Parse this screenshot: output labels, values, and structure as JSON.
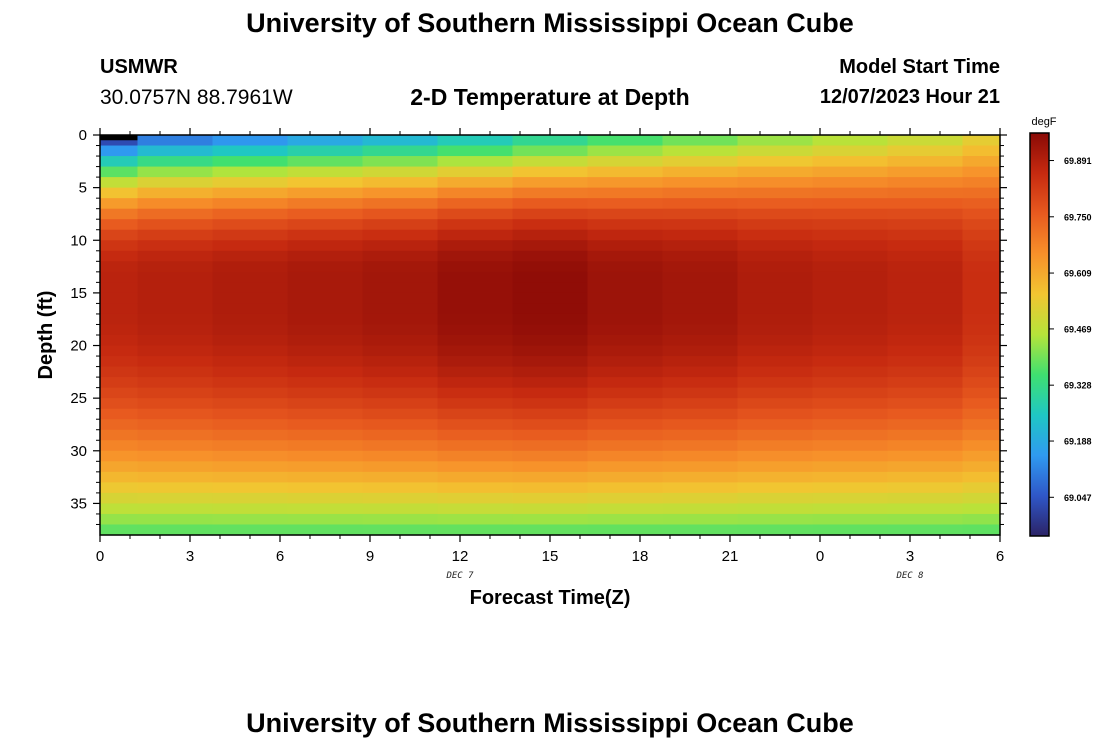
{
  "header": {
    "title": "University of Southern Mississippi Ocean Cube",
    "station": "USMWR",
    "coordinates": "30.0757N  88.7961W",
    "subtitle": "2-D Temperature at Depth",
    "model_start_label": "Model Start Time",
    "model_start_value": "12/07/2023 Hour 21"
  },
  "footer": {
    "title": "University of Southern Mississippi Ocean Cube"
  },
  "chart_data": {
    "type": "heatmap",
    "title": "2-D Temperature at Depth",
    "xlabel": "Forecast Time(Z)",
    "ylabel": "Depth (ft)",
    "x_ticks": [
      "0",
      "3",
      "6",
      "9",
      "12",
      "15",
      "18",
      "21",
      "0",
      "3",
      "6"
    ],
    "day_labels": [
      {
        "text": "DEC 7",
        "at_tick": 4
      },
      {
        "text": "DEC 8",
        "at_tick": 9
      }
    ],
    "y_ticks": [
      "0",
      "5",
      "10",
      "15",
      "20",
      "25",
      "30",
      "35"
    ],
    "ylim": [
      38,
      0
    ],
    "colorbar": {
      "unit": "degF",
      "min": 68.95,
      "max": 69.96,
      "labels": [
        "69.891",
        "69.750",
        "69.609",
        "69.469",
        "69.328",
        "69.188",
        "69.047"
      ],
      "colors": [
        "#2b2366",
        "#2f57c8",
        "#2f9af0",
        "#1fc7c4",
        "#3fe070",
        "#b6e43a",
        "#f2c531",
        "#f7902a",
        "#e85a1f",
        "#c62a10",
        "#8a0a06"
      ]
    },
    "time_columns": [
      "0",
      "1.25",
      "3.75",
      "6.25",
      "8.75",
      "11.25",
      "13.75",
      "16.25",
      "18.75",
      "21.25",
      "23.75",
      "26.25",
      "28.75",
      "30"
    ],
    "surface_temp_by_column": [
      68.97,
      69.06,
      69.1,
      69.14,
      69.18,
      69.23,
      69.28,
      69.33,
      69.37,
      69.41,
      69.44,
      69.47,
      69.52
    ],
    "top_warming_depth_ft": [
      1.6,
      2.2,
      2.7,
      3.2,
      3.8,
      4.4,
      5.0,
      5.6,
      6.1,
      6.5,
      6.9,
      7.3,
      7.8
    ],
    "core_temp_by_column": [
      69.88,
      69.89,
      69.9,
      69.91,
      69.92,
      69.94,
      69.95,
      69.93,
      69.92,
      69.9,
      69.89,
      69.88,
      69.85
    ],
    "core_depth_ft": [
      14,
      16.5
    ],
    "bottom_temp": 69.36
  }
}
